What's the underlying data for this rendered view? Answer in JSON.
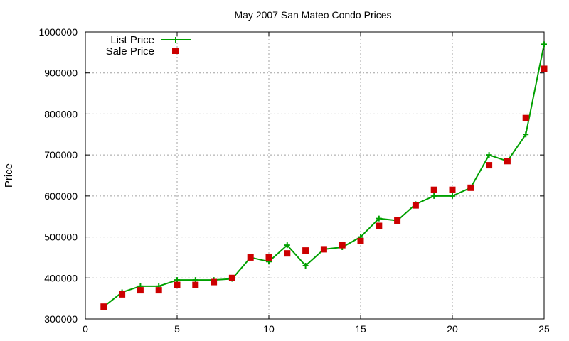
{
  "chart_data": {
    "type": "scatter",
    "title": "May 2007 San Mateo Condo Prices",
    "xlabel": "",
    "ylabel": "Price",
    "xlim": [
      0,
      25
    ],
    "ylim": [
      300000,
      1000000
    ],
    "xticks": [
      0,
      5,
      10,
      15,
      20,
      25
    ],
    "yticks": [
      300000,
      400000,
      500000,
      600000,
      700000,
      800000,
      900000,
      1000000
    ],
    "grid": true,
    "legend_position": "top-left",
    "series": [
      {
        "name": "List Price",
        "style": "line-with-plus-markers",
        "color": "#00a000",
        "x": [
          1,
          2,
          3,
          4,
          5,
          6,
          7,
          8,
          9,
          10,
          11,
          12,
          13,
          14,
          15,
          16,
          17,
          18,
          19,
          20,
          21,
          22,
          23,
          24,
          25
        ],
        "y": [
          330000,
          365000,
          380000,
          380000,
          395000,
          395000,
          395000,
          398000,
          450000,
          440000,
          480000,
          430000,
          470000,
          475000,
          500000,
          545000,
          540000,
          580000,
          600000,
          600000,
          620000,
          700000,
          685000,
          750000,
          970000
        ]
      },
      {
        "name": "Sale Price",
        "style": "square-markers",
        "color": "#cc0000",
        "x": [
          1,
          2,
          3,
          4,
          5,
          6,
          7,
          8,
          9,
          10,
          11,
          12,
          13,
          14,
          15,
          16,
          17,
          18,
          19,
          20,
          21,
          22,
          23,
          24,
          25
        ],
        "y": [
          330000,
          360000,
          370000,
          370000,
          383000,
          383000,
          390000,
          400000,
          450000,
          450000,
          460000,
          467000,
          470000,
          480000,
          490000,
          527000,
          540000,
          577000,
          615000,
          615000,
          620000,
          675000,
          685000,
          790000,
          910000
        ]
      }
    ]
  }
}
